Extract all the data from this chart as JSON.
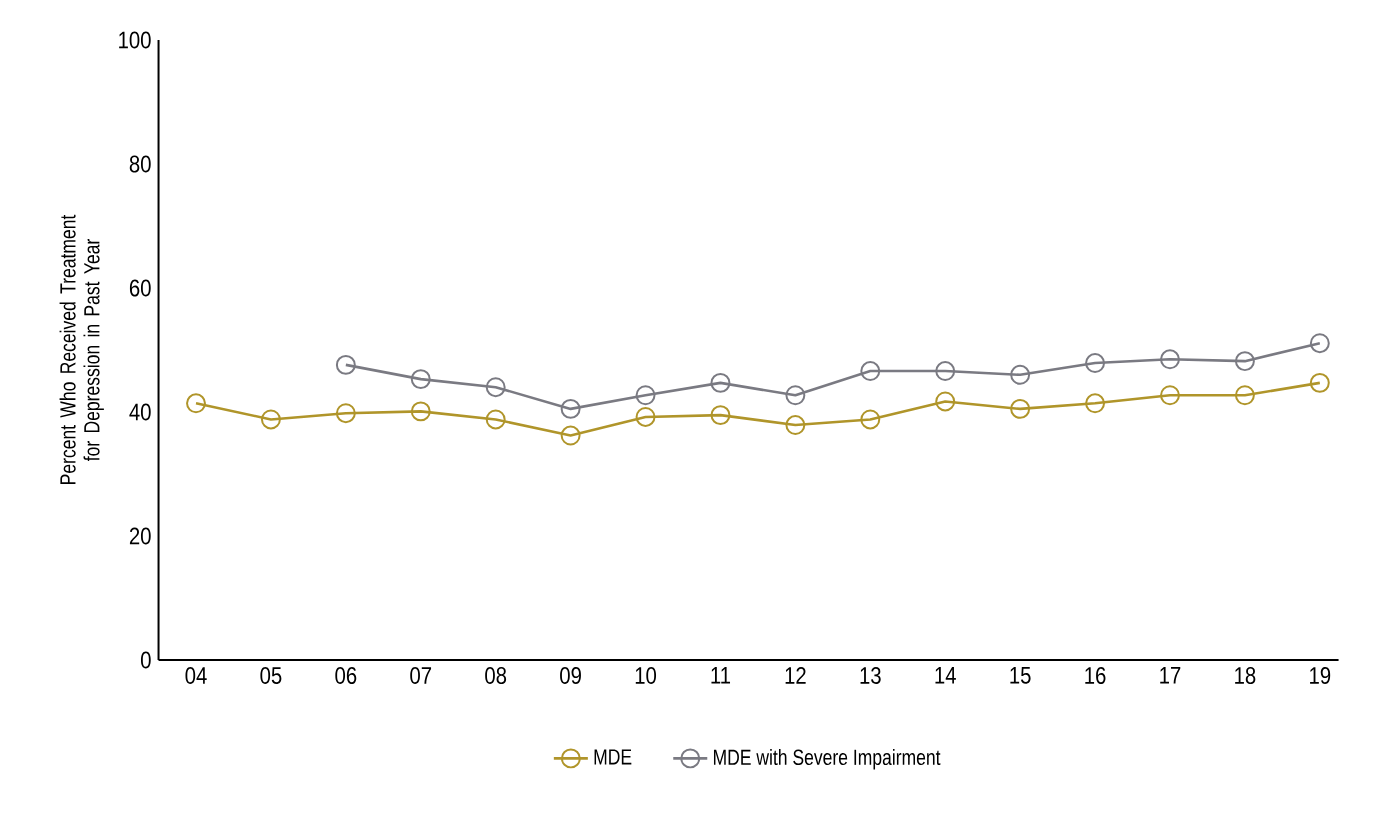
{
  "chart_data": {
    "type": "line",
    "ylabel": "Percent Who Received Treatment for Depression in Past Year",
    "categories": [
      "04",
      "05",
      "06",
      "07",
      "08",
      "09",
      "10",
      "11",
      "12",
      "13",
      "14",
      "15",
      "16",
      "17",
      "18",
      "19"
    ],
    "series": [
      {
        "name": "MDE",
        "color": "#b0952a",
        "marker": "circle",
        "values": [
          41.4,
          38.8,
          39.8,
          40.1,
          38.8,
          36.2,
          39.2,
          39.5,
          37.9,
          38.8,
          41.7,
          40.5,
          41.4,
          42.7,
          42.7,
          44.7
        ]
      },
      {
        "name": "MDE with Severe Impairment",
        "color": "#7a7a82",
        "marker": "circle",
        "values": [
          null,
          null,
          47.6,
          45.3,
          44.0,
          40.5,
          42.7,
          44.7,
          42.7,
          46.6,
          46.6,
          46.0,
          47.9,
          48.5,
          48.2,
          51.1
        ]
      }
    ],
    "ylim": [
      0,
      100
    ],
    "yticks": [
      0,
      20,
      40,
      60,
      80,
      100
    ],
    "grid": false,
    "legend": "bottom",
    "line_style": "solid"
  }
}
